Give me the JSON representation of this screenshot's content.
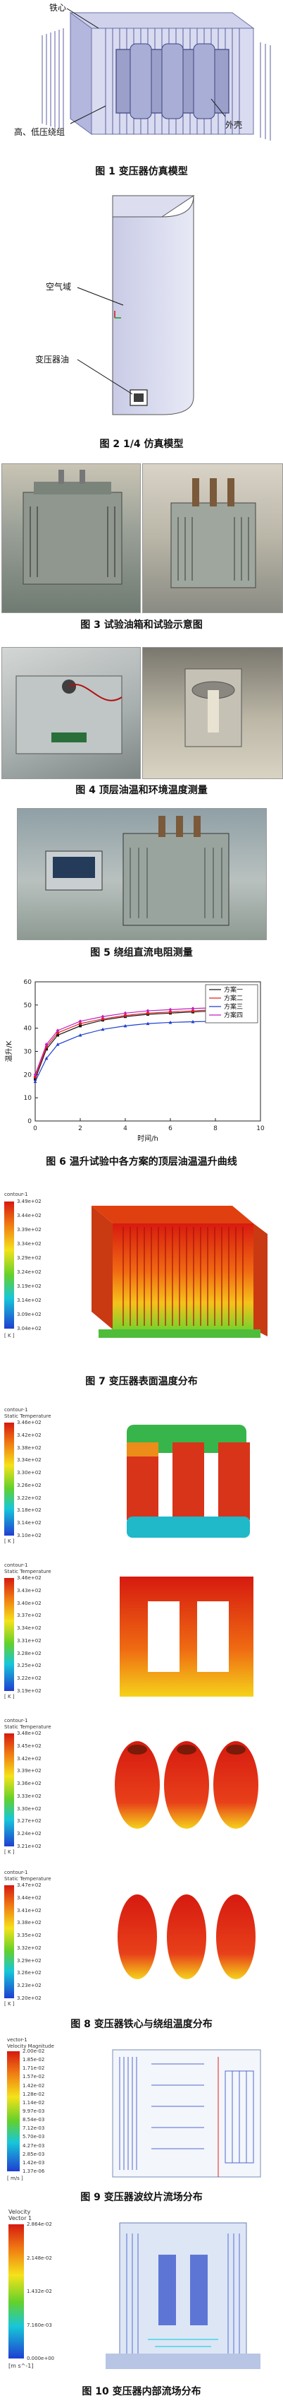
{
  "fig1": {
    "caption": "图 1  变压器仿真模型",
    "labels": {
      "core": "铁心",
      "windings": "高、低压绕组",
      "shell": "外壳"
    }
  },
  "fig2": {
    "caption": "图 2  1/4 仿真模型",
    "labels": {
      "air": "空气域",
      "oil": "变压器油"
    }
  },
  "fig3": {
    "caption": "图 3  试验油箱和试验示意图"
  },
  "fig4": {
    "caption": "图 4  顶层油温和环境温度测量"
  },
  "fig5": {
    "caption": "图 5  绕组直流电阻测量"
  },
  "fig6": {
    "caption": "图 6  温升试验中各方案的顶层油温温升曲线",
    "chart_data": {
      "type": "line",
      "xlabel": "时间/h",
      "ylabel": "温升/K",
      "xlim": [
        0,
        10
      ],
      "ylim": [
        0,
        60
      ],
      "xticks": [
        0,
        2,
        4,
        6,
        8,
        10
      ],
      "yticks": [
        0,
        10,
        20,
        30,
        40,
        50,
        60
      ],
      "legend_position": "top-right",
      "series": [
        {
          "name": "方案一",
          "color": "#1a1a1a",
          "x": [
            0,
            0.5,
            1,
            2,
            3,
            4,
            5,
            6,
            7,
            8,
            9
          ],
          "values": [
            18,
            31,
            37,
            41,
            43.5,
            45,
            46,
            46.5,
            47,
            47.5,
            47.8
          ]
        },
        {
          "name": "方案二",
          "color": "#e0201b",
          "x": [
            0,
            0.5,
            1,
            2,
            3,
            4,
            5,
            6,
            7,
            8,
            9
          ],
          "values": [
            19,
            32,
            38,
            42,
            44,
            45.5,
            46.5,
            47,
            47.5,
            48,
            48.2
          ]
        },
        {
          "name": "方案三",
          "color": "#1f3fd1",
          "x": [
            0,
            0.5,
            1,
            2,
            3,
            4,
            5,
            6,
            7,
            8,
            9
          ],
          "values": [
            17,
            27,
            33,
            37,
            39.5,
            41,
            42,
            42.5,
            42.8,
            43,
            43.2
          ]
        },
        {
          "name": "方案四",
          "color": "#c21fc2",
          "x": [
            0,
            0.5,
            1,
            2,
            3,
            4,
            5,
            6,
            7,
            8,
            9
          ],
          "values": [
            20,
            33,
            39,
            43,
            45,
            46.5,
            47.5,
            48,
            48.5,
            48.8,
            49
          ]
        }
      ]
    }
  },
  "fig7": {
    "caption": "图 7  变压器表面温度分布",
    "colorbar": {
      "title": "contour-1",
      "ticks": [
        "3.49e+02",
        "3.44e+02",
        "3.39e+02",
        "3.34e+02",
        "3.29e+02",
        "3.24e+02",
        "3.19e+02",
        "3.14e+02",
        "3.09e+02",
        "3.04e+02"
      ],
      "unit": "[ K ]"
    }
  },
  "fig8": {
    "caption": "图 8  变压器铁心与绕组温度分布",
    "colorbars": [
      {
        "title": "contour-1\nStatic Temperature",
        "ticks": [
          "3.46e+02",
          "3.42e+02",
          "3.38e+02",
          "3.34e+02",
          "3.30e+02",
          "3.26e+02",
          "3.22e+02",
          "3.18e+02",
          "3.14e+02",
          "3.10e+02"
        ],
        "unit": "[ K ]"
      },
      {
        "title": "contour-1\nStatic Temperature",
        "ticks": [
          "3.46e+02",
          "3.43e+02",
          "3.40e+02",
          "3.37e+02",
          "3.34e+02",
          "3.31e+02",
          "3.28e+02",
          "3.25e+02",
          "3.22e+02",
          "3.19e+02"
        ],
        "unit": "[ K ]"
      },
      {
        "title": "contour-1\nStatic Temperature",
        "ticks": [
          "3.48e+02",
          "3.45e+02",
          "3.42e+02",
          "3.39e+02",
          "3.36e+02",
          "3.33e+02",
          "3.30e+02",
          "3.27e+02",
          "3.24e+02",
          "3.21e+02"
        ],
        "unit": "[ K ]"
      },
      {
        "title": "contour-1\nStatic Temperature",
        "ticks": [
          "3.47e+02",
          "3.44e+02",
          "3.41e+02",
          "3.38e+02",
          "3.35e+02",
          "3.32e+02",
          "3.29e+02",
          "3.26e+02",
          "3.23e+02",
          "3.20e+02"
        ],
        "unit": "[ K ]"
      }
    ]
  },
  "fig9": {
    "caption": "图 9  变压器波纹片流场分布",
    "colorbar": {
      "title": "vector-1\nVelocity Magnitude",
      "ticks": [
        "2.00e-02",
        "1.85e-02",
        "1.71e-02",
        "1.57e-02",
        "1.42e-02",
        "1.28e-02",
        "1.14e-02",
        "9.97e-03",
        "8.54e-03",
        "7.12e-03",
        "5.70e-03",
        "4.27e-03",
        "2.85e-03",
        "1.42e-03",
        "1.37e-06"
      ],
      "unit": "[ m/s ]"
    }
  },
  "fig10": {
    "caption": "图 10  变压器内部流场分布",
    "colorbar": {
      "title": "Velocity\nVector 1",
      "ticks": [
        "2.864e-02",
        "2.148e-02",
        "1.432e-02",
        "7.160e-03",
        "0.000e+00"
      ],
      "unit": "[m s^-1]"
    }
  }
}
